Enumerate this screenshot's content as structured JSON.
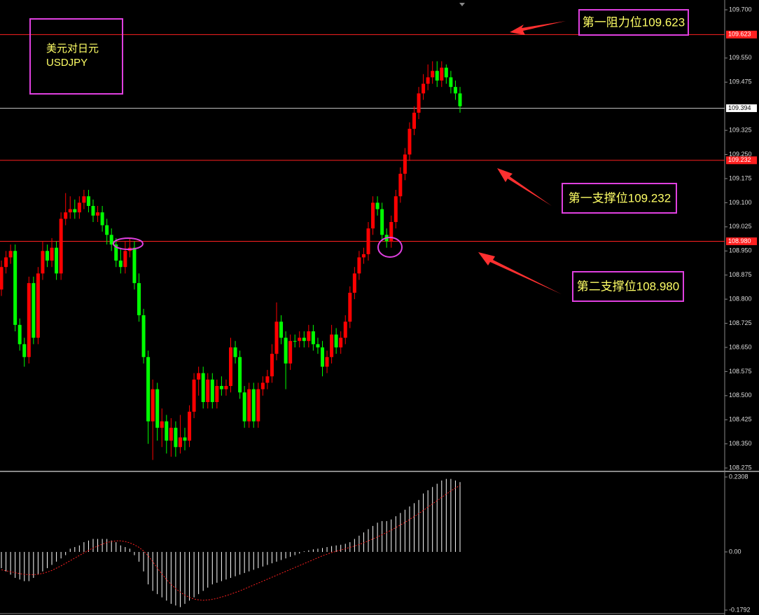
{
  "chart_data": [
    {
      "type": "candlestick",
      "title": "美元对日元",
      "subtitle": "USDJPY",
      "up_color": "#ff0000",
      "down_color": "#00ff00",
      "ylim": [
        108.2665,
        109.7305
      ],
      "yticks": [
        {
          "value": 109.7,
          "label": "109.700"
        },
        {
          "value": 109.55,
          "label": "109.550"
        },
        {
          "value": 109.475,
          "label": "109.475"
        },
        {
          "value": 109.325,
          "label": "109.325"
        },
        {
          "value": 109.25,
          "label": "109.250"
        },
        {
          "value": 109.175,
          "label": "109.175"
        },
        {
          "value": 109.1,
          "label": "109.100"
        },
        109.025,
        {
          "value": 108.95,
          "label": "108.950"
        },
        108.875,
        {
          "value": 108.8,
          "label": "108.800"
        },
        108.725,
        {
          "value": 108.65,
          "label": "108.650"
        },
        108.575,
        {
          "value": 108.5,
          "label": "108.500"
        },
        108.425,
        {
          "value": 108.35,
          "label": "108.350"
        },
        108.275
      ],
      "levels": [
        {
          "value": 109.623,
          "label": "109.623",
          "color": "#ff2020",
          "text_color": "#ffffff"
        },
        {
          "value": 109.394,
          "label": "109.394",
          "color": "#c0c0c0",
          "text_color": "#000000"
        },
        {
          "value": 109.232,
          "label": "109.232",
          "color": "#ff2020",
          "text_color": "#ffffff"
        },
        {
          "value": 108.98,
          "label": "108.980",
          "color": "#ff2020",
          "text_color": "#ffffff"
        }
      ],
      "annotations": [
        {
          "text": "第一阻力位109.623"
        },
        {
          "text": "第一支撑位109.232"
        },
        {
          "text": "第二支撑位108.980"
        }
      ],
      "open": [
        108.83,
        108.9,
        108.93,
        108.95,
        108.72,
        108.66,
        108.62,
        108.85,
        108.68,
        108.88,
        108.95,
        108.92,
        108.96,
        108.88,
        109.05,
        109.07,
        109.08,
        109.07,
        109.1,
        109.12,
        109.09,
        109.06,
        109.07,
        109.03,
        109.0,
        108.97,
        108.92,
        108.9,
        108.95,
        108.96,
        108.85,
        108.75,
        108.62,
        108.42,
        108.52,
        108.4,
        108.42,
        108.36,
        108.4,
        108.34,
        108.37,
        108.36,
        108.45,
        108.55,
        108.57,
        108.48,
        108.55,
        108.48,
        108.53,
        108.52,
        108.53,
        108.65,
        108.62,
        108.51,
        108.42,
        108.52,
        108.42,
        108.52,
        108.54,
        108.56,
        108.63,
        108.73,
        108.68,
        108.6,
        108.67,
        108.67,
        108.68,
        108.67,
        108.7,
        108.66,
        108.65,
        108.59,
        108.62,
        108.69,
        108.65,
        108.68,
        108.73,
        108.82,
        108.88,
        108.93,
        108.94,
        109.02,
        109.1,
        109.08,
        109.0,
        108.98,
        109.04,
        109.12,
        109.19,
        109.25,
        109.33,
        109.38,
        109.44,
        109.47,
        109.49,
        109.51,
        109.48,
        109.52,
        109.49,
        109.46,
        109.44
      ],
      "high": [
        108.92,
        108.95,
        108.97,
        108.97,
        108.74,
        108.68,
        108.87,
        108.87,
        108.9,
        108.98,
        108.97,
        108.99,
        108.98,
        109.07,
        109.13,
        109.12,
        109.11,
        109.12,
        109.14,
        109.14,
        109.11,
        109.09,
        109.09,
        109.05,
        109.02,
        108.99,
        108.96,
        108.98,
        108.99,
        108.98,
        108.88,
        108.77,
        108.64,
        108.55,
        108.54,
        108.46,
        108.44,
        108.43,
        108.42,
        108.44,
        108.4,
        108.47,
        108.57,
        108.59,
        108.59,
        108.57,
        108.57,
        108.55,
        108.56,
        108.55,
        108.68,
        108.67,
        108.64,
        108.53,
        108.54,
        108.54,
        108.54,
        108.56,
        108.58,
        108.66,
        108.79,
        108.75,
        108.7,
        108.69,
        108.69,
        108.7,
        108.7,
        108.72,
        108.72,
        108.68,
        108.67,
        108.64,
        108.72,
        108.71,
        108.7,
        108.75,
        108.84,
        108.9,
        108.95,
        108.96,
        109.04,
        109.12,
        109.12,
        109.1,
        109.02,
        109.06,
        109.14,
        109.21,
        109.27,
        109.35,
        109.4,
        109.46,
        109.5,
        109.53,
        109.54,
        109.54,
        109.54,
        109.53,
        109.51,
        109.48,
        109.46
      ],
      "low": [
        108.81,
        108.88,
        108.91,
        108.7,
        108.64,
        108.59,
        108.6,
        108.66,
        108.66,
        108.86,
        108.9,
        108.9,
        108.86,
        108.86,
        109.03,
        109.05,
        109.05,
        109.05,
        109.08,
        109.07,
        109.04,
        109.04,
        109.01,
        108.97,
        108.95,
        108.9,
        108.88,
        108.88,
        108.93,
        108.83,
        108.73,
        108.6,
        108.35,
        108.3,
        108.36,
        108.34,
        108.32,
        108.31,
        108.31,
        108.32,
        108.33,
        108.34,
        108.43,
        108.5,
        108.46,
        108.46,
        108.46,
        108.46,
        108.5,
        108.5,
        108.51,
        108.6,
        108.49,
        108.4,
        108.4,
        108.4,
        108.4,
        108.5,
        108.52,
        108.54,
        108.61,
        108.66,
        108.52,
        108.58,
        108.65,
        108.65,
        108.65,
        108.65,
        108.64,
        108.63,
        108.56,
        108.57,
        108.6,
        108.63,
        108.63,
        108.66,
        108.71,
        108.8,
        108.86,
        108.91,
        108.92,
        109.0,
        109.06,
        108.98,
        108.96,
        108.96,
        109.02,
        109.1,
        109.17,
        109.23,
        109.31,
        109.36,
        109.42,
        109.45,
        109.47,
        109.46,
        109.46,
        109.47,
        109.44,
        109.42,
        109.38
      ],
      "close": [
        108.9,
        108.93,
        108.95,
        108.72,
        108.66,
        108.62,
        108.85,
        108.68,
        108.88,
        108.95,
        108.92,
        108.96,
        108.88,
        109.05,
        109.07,
        109.08,
        109.07,
        109.1,
        109.12,
        109.09,
        109.06,
        109.07,
        109.03,
        109.0,
        108.97,
        108.92,
        108.9,
        108.95,
        108.96,
        108.85,
        108.75,
        108.62,
        108.42,
        108.52,
        108.4,
        108.42,
        108.36,
        108.4,
        108.34,
        108.37,
        108.36,
        108.45,
        108.55,
        108.57,
        108.48,
        108.55,
        108.48,
        108.53,
        108.52,
        108.53,
        108.65,
        108.62,
        108.51,
        108.42,
        108.52,
        108.42,
        108.52,
        108.54,
        108.56,
        108.63,
        108.73,
        108.68,
        108.6,
        108.67,
        108.67,
        108.68,
        108.67,
        108.7,
        108.66,
        108.65,
        108.59,
        108.62,
        108.69,
        108.65,
        108.68,
        108.73,
        108.82,
        108.88,
        108.93,
        108.94,
        109.02,
        109.1,
        109.08,
        109.0,
        108.98,
        109.04,
        109.12,
        109.19,
        109.25,
        109.33,
        109.38,
        109.44,
        109.47,
        109.49,
        109.51,
        109.48,
        109.52,
        109.49,
        109.46,
        109.44,
        109.4
      ]
    },
    {
      "type": "macd",
      "color": "#ffffff",
      "signal_color": "#ff2020",
      "ylim": [
        -0.19,
        0.2437
      ],
      "yticks": [
        0.2308,
        {
          "value": 0,
          "label": "0.00"
        },
        -0.1792
      ],
      "histogram": [
        -0.05,
        -0.06,
        -0.07,
        -0.08,
        -0.085,
        -0.09,
        -0.09,
        -0.08,
        -0.07,
        -0.06,
        -0.05,
        -0.04,
        -0.03,
        -0.02,
        -0.01,
        0.01,
        0.015,
        0.02,
        0.03,
        0.035,
        0.04,
        0.04,
        0.04,
        0.04,
        0.035,
        0.03,
        0.02,
        0.015,
        0.01,
        -0.01,
        -0.03,
        -0.06,
        -0.1,
        -0.12,
        -0.13,
        -0.14,
        -0.15,
        -0.16,
        -0.165,
        -0.17,
        -0.16,
        -0.15,
        -0.14,
        -0.13,
        -0.12,
        -0.11,
        -0.1,
        -0.095,
        -0.09,
        -0.085,
        -0.08,
        -0.075,
        -0.07,
        -0.065,
        -0.06,
        -0.055,
        -0.05,
        -0.045,
        -0.04,
        -0.035,
        -0.03,
        -0.025,
        -0.02,
        -0.015,
        -0.01,
        -0.005,
        0.002,
        0.005,
        0.008,
        0.01,
        0.012,
        0.015,
        0.018,
        0.02,
        0.022,
        0.025,
        0.03,
        0.04,
        0.05,
        0.06,
        0.07,
        0.08,
        0.09,
        0.095,
        0.095,
        0.1,
        0.11,
        0.12,
        0.13,
        0.14,
        0.15,
        0.16,
        0.18,
        0.19,
        0.2,
        0.21,
        0.22,
        0.225,
        0.225,
        0.22,
        0.215
      ],
      "signal": [
        -0.055,
        -0.058,
        -0.061,
        -0.064,
        -0.067,
        -0.069,
        -0.07,
        -0.07,
        -0.069,
        -0.066,
        -0.062,
        -0.057,
        -0.05,
        -0.043,
        -0.035,
        -0.027,
        -0.019,
        -0.011,
        -0.003,
        0.005,
        0.012,
        0.018,
        0.024,
        0.029,
        0.032,
        0.034,
        0.034,
        0.032,
        0.028,
        0.022,
        0.014,
        0.003,
        -0.012,
        -0.03,
        -0.05,
        -0.068,
        -0.085,
        -0.1,
        -0.113,
        -0.124,
        -0.133,
        -0.14,
        -0.145,
        -0.148,
        -0.149,
        -0.148,
        -0.146,
        -0.143,
        -0.139,
        -0.135,
        -0.13,
        -0.125,
        -0.12,
        -0.114,
        -0.108,
        -0.102,
        -0.096,
        -0.09,
        -0.084,
        -0.078,
        -0.072,
        -0.066,
        -0.06,
        -0.054,
        -0.048,
        -0.042,
        -0.036,
        -0.03,
        -0.024,
        -0.018,
        -0.012,
        -0.007,
        -0.002,
        0.002,
        0.006,
        0.01,
        0.014,
        0.018,
        0.023,
        0.028,
        0.034,
        0.04,
        0.046,
        0.053,
        0.06,
        0.067,
        0.075,
        0.083,
        0.091,
        0.1,
        0.109,
        0.118,
        0.128,
        0.138,
        0.148,
        0.158,
        0.168,
        0.178,
        0.188,
        0.197,
        0.205
      ]
    }
  ]
}
